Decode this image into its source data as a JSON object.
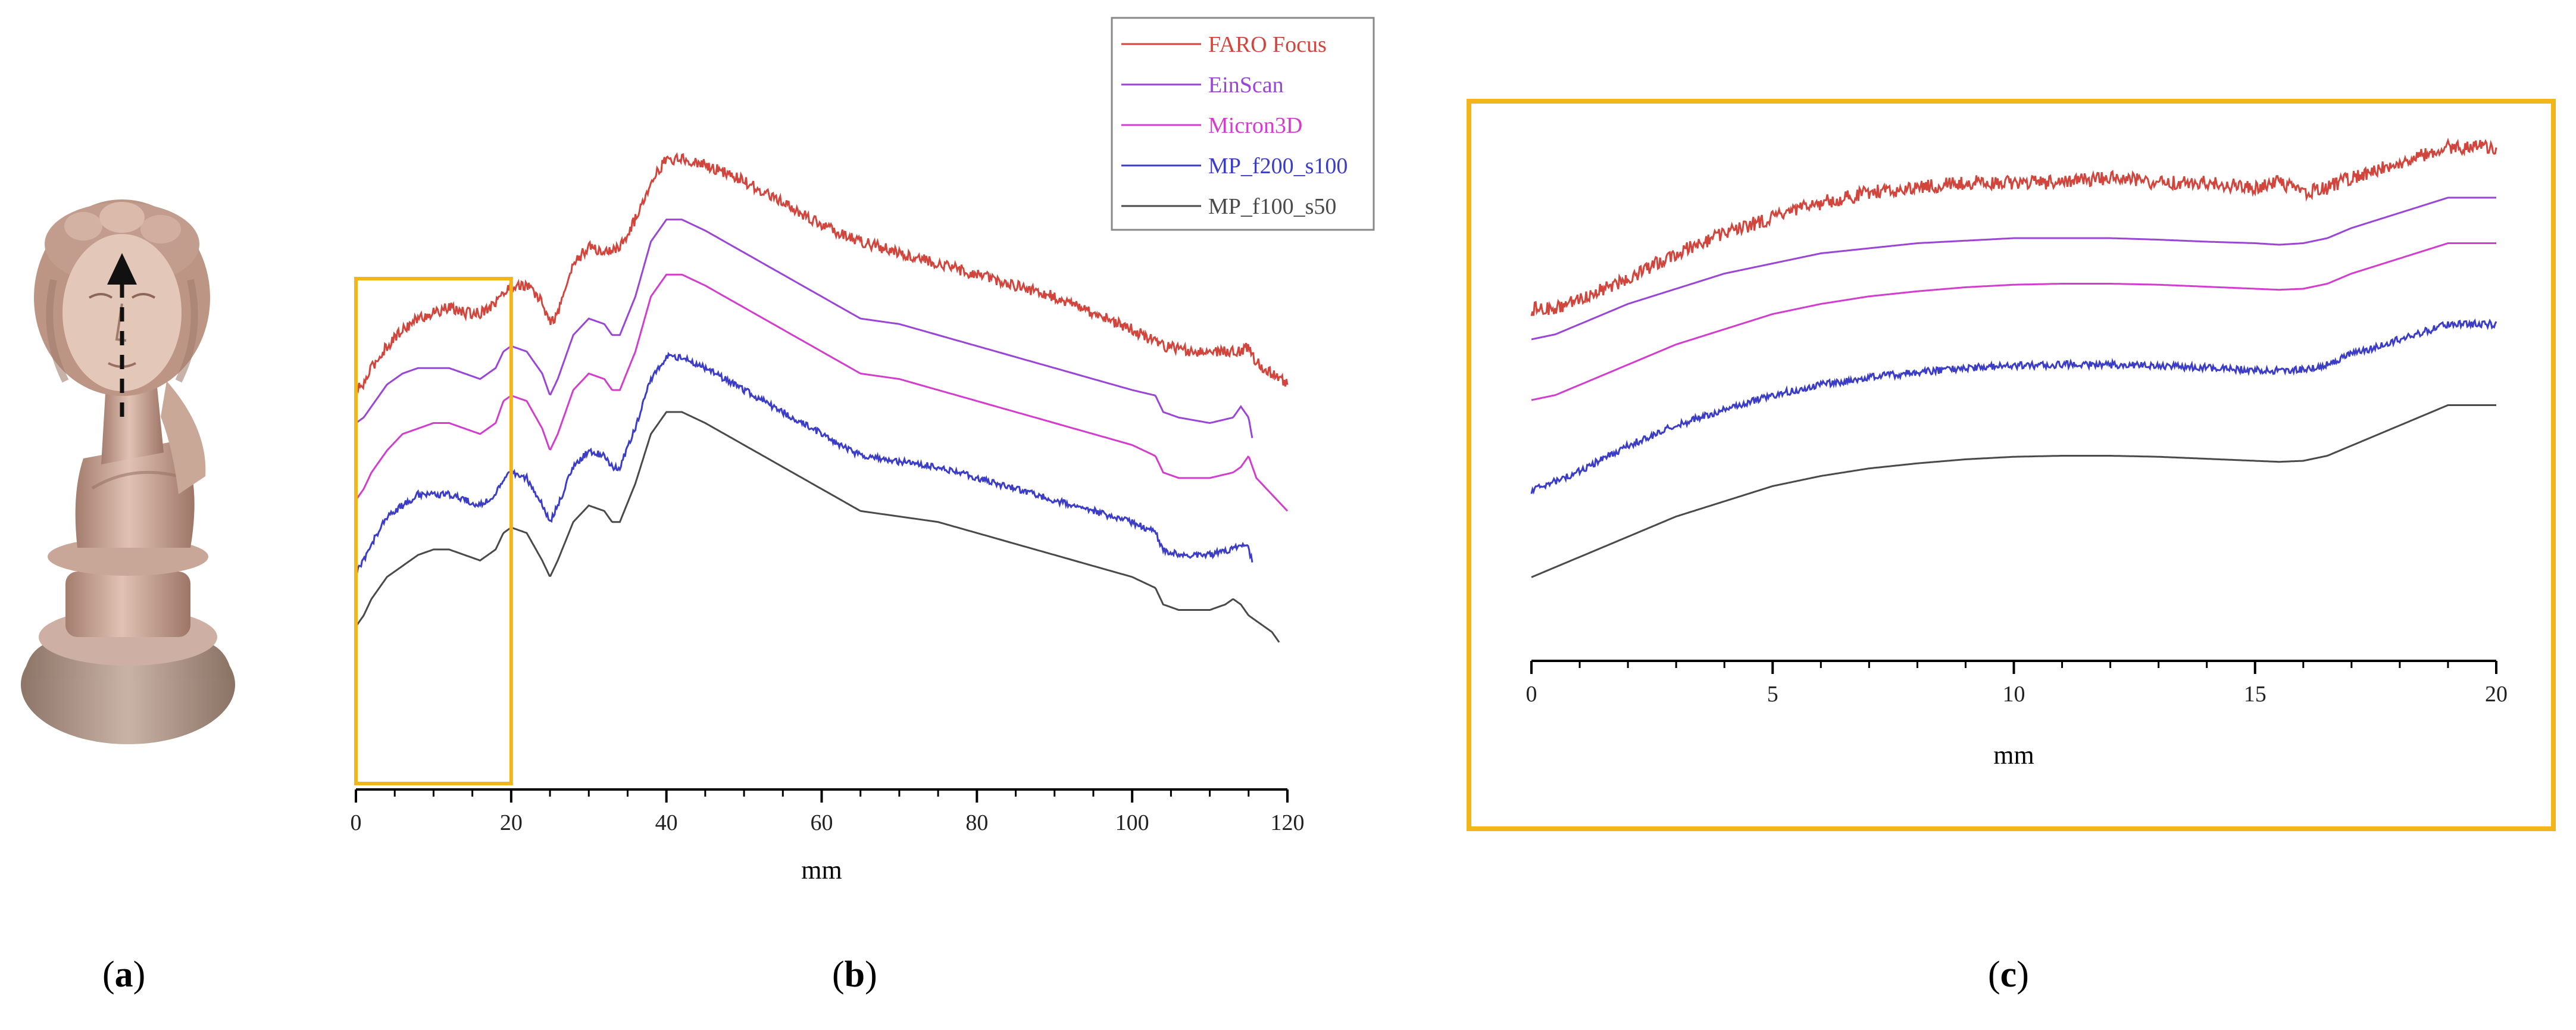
{
  "panels": {
    "a": {
      "label_open": "(",
      "label_letter": "a",
      "label_close": ")"
    },
    "b": {
      "label_open": "(",
      "label_letter": "b",
      "label_close": ")"
    },
    "c": {
      "label_open": "(",
      "label_letter": "c",
      "label_close": ")"
    }
  },
  "colors": {
    "highlight_box": "#f2b61a",
    "axis": "#000000"
  },
  "chart_data": [
    {
      "panel": "b",
      "type": "line",
      "title": "",
      "xlabel": "mm",
      "ylabel": "",
      "xlim": [
        0,
        120
      ],
      "xticks": [
        "0",
        "20",
        "40",
        "60",
        "80",
        "100",
        "120"
      ],
      "ylim": [
        0,
        115
      ],
      "yticks": [],
      "grid": false,
      "legend_position": "top-right",
      "highlight_range_x": [
        0,
        20
      ],
      "series": [
        {
          "name": "FARO Focus",
          "color": "#d1453d",
          "noise": 1.0,
          "x": [
            0,
            1,
            2,
            4,
            6,
            8,
            10,
            12,
            14,
            16,
            18,
            20,
            22,
            24,
            25,
            26,
            28,
            30,
            32,
            34,
            36,
            38,
            40,
            42,
            45,
            50,
            55,
            60,
            65,
            70,
            75,
            80,
            85,
            90,
            95,
            100,
            104,
            108,
            112,
            114,
            115,
            116,
            118,
            120
          ],
          "y": [
            72,
            73,
            76,
            80,
            83,
            85,
            86,
            87,
            86,
            86,
            88,
            91,
            91,
            88,
            84,
            86,
            95,
            98,
            97,
            98,
            103,
            110,
            114,
            114,
            113,
            110,
            106,
            102,
            99,
            97,
            95,
            93,
            91,
            89,
            86,
            83,
            80,
            79,
            79,
            79,
            80,
            77,
            75,
            73
          ]
        },
        {
          "name": "EinScan",
          "color": "#9b45d6",
          "noise": 0,
          "x": [
            0,
            1,
            2,
            4,
            6,
            8,
            10,
            12,
            14,
            16,
            18,
            19,
            20,
            22,
            24,
            25,
            26,
            28,
            30,
            32,
            33,
            34,
            36,
            38,
            40,
            42,
            45,
            50,
            55,
            60,
            65,
            70,
            75,
            80,
            85,
            90,
            95,
            100,
            103,
            104,
            106,
            110,
            113,
            114,
            115,
            115.5
          ],
          "y": [
            66,
            67,
            69,
            73,
            75,
            76,
            76,
            76,
            75,
            74,
            76,
            79,
            80,
            79,
            75,
            71,
            74,
            82,
            85,
            84,
            82,
            82,
            89,
            99,
            103,
            103,
            101,
            97,
            93,
            89,
            85,
            84,
            82,
            80,
            78,
            76,
            74,
            72,
            71,
            68,
            67,
            66,
            67,
            69,
            67,
            63
          ]
        },
        {
          "name": "Micron3D",
          "color": "#d23dce",
          "noise": 0,
          "x": [
            0,
            1,
            2,
            4,
            6,
            8,
            10,
            12,
            14,
            16,
            18,
            19,
            20,
            22,
            24,
            25,
            26,
            28,
            30,
            32,
            33,
            34,
            36,
            38,
            40,
            42,
            45,
            50,
            55,
            60,
            65,
            70,
            75,
            80,
            85,
            90,
            95,
            100,
            103,
            104,
            106,
            110,
            113,
            114,
            115,
            116,
            118,
            120
          ],
          "y": [
            52,
            54,
            57,
            61,
            64,
            65,
            66,
            66,
            65,
            64,
            66,
            70,
            71,
            70,
            65,
            61,
            64,
            72,
            75,
            74,
            72,
            72,
            79,
            89,
            93,
            93,
            91,
            87,
            83,
            79,
            75,
            74,
            72,
            70,
            68,
            66,
            64,
            62,
            60,
            57,
            56,
            56,
            57,
            58,
            60,
            56,
            53,
            50
          ]
        },
        {
          "name": "MP_f200_s100",
          "color": "#3b3cc8",
          "noise": 0.6,
          "x": [
            0,
            1,
            2,
            4,
            6,
            8,
            10,
            12,
            14,
            16,
            18,
            19,
            20,
            22,
            24,
            25,
            26,
            28,
            30,
            32,
            33,
            34,
            36,
            38,
            40,
            42,
            45,
            50,
            55,
            60,
            65,
            70,
            75,
            80,
            85,
            90,
            95,
            100,
            103,
            104,
            106,
            110,
            113,
            114,
            115,
            115.5
          ],
          "y": [
            39,
            41,
            44,
            49,
            51,
            53,
            53,
            53,
            52,
            51,
            53,
            56,
            57,
            56,
            51,
            48,
            51,
            58,
            61,
            60,
            58,
            58,
            65,
            74,
            78,
            78,
            76,
            72,
            68,
            64,
            60,
            59,
            58,
            56,
            54,
            52,
            50,
            48,
            46,
            43,
            42,
            42,
            43,
            44,
            43,
            41
          ]
        },
        {
          "name": "MP_f100_s50",
          "color": "#4a4a4a",
          "noise": 0,
          "x": [
            0,
            1,
            2,
            4,
            6,
            8,
            10,
            12,
            14,
            16,
            18,
            19,
            20,
            22,
            24,
            25,
            26,
            28,
            30,
            32,
            33,
            34,
            36,
            38,
            40,
            42,
            45,
            50,
            55,
            60,
            65,
            70,
            75,
            80,
            85,
            90,
            95,
            100,
            103,
            104,
            106,
            110,
            112,
            113,
            114,
            115,
            116,
            118,
            119
          ],
          "y": [
            29,
            31,
            34,
            38,
            40,
            42,
            43,
            43,
            42,
            41,
            43,
            46,
            47,
            46,
            41,
            38,
            41,
            48,
            51,
            50,
            48,
            48,
            55,
            64,
            68,
            68,
            66,
            62,
            58,
            54,
            50,
            49,
            48,
            46,
            44,
            42,
            40,
            38,
            36,
            33,
            32,
            32,
            33,
            34,
            33,
            31,
            30,
            28,
            26
          ]
        }
      ]
    },
    {
      "panel": "c",
      "type": "line",
      "title": "",
      "xlabel": "mm",
      "ylabel": "",
      "xlim": [
        0,
        20
      ],
      "xticks": [
        "0",
        "5",
        "10",
        "15",
        "20"
      ],
      "ylim": [
        0,
        100
      ],
      "yticks": [],
      "grid": false,
      "series": [
        {
          "name": "FARO Focus",
          "color": "#d1453d",
          "noise": 1.4,
          "x": [
            0,
            0.5,
            1,
            2,
            3,
            4,
            5,
            6,
            7,
            8,
            9,
            10,
            11,
            12,
            13,
            14,
            15,
            15.5,
            16,
            16.5,
            17,
            18,
            19,
            20
          ],
          "y": [
            66,
            66,
            68,
            72,
            77,
            81,
            84,
            87,
            89,
            90,
            91,
            91,
            91,
            92,
            91,
            91,
            90,
            91,
            89,
            90,
            92,
            95,
            98,
            98
          ]
        },
        {
          "name": "EinScan",
          "color": "#9b45d6",
          "noise": 0,
          "x": [
            0,
            0.5,
            1,
            2,
            3,
            4,
            5,
            6,
            7,
            8,
            9,
            10,
            11,
            12,
            13,
            14,
            15,
            15.5,
            16,
            16.5,
            17,
            18,
            19,
            20
          ],
          "y": [
            60,
            61,
            63,
            67,
            70,
            73,
            75,
            77,
            78,
            79,
            79.5,
            80,
            80,
            80,
            79.7,
            79.3,
            79,
            78.7,
            79,
            80,
            82,
            85,
            88,
            88
          ]
        },
        {
          "name": "Micron3D",
          "color": "#d23dce",
          "noise": 0,
          "x": [
            0,
            0.5,
            1,
            2,
            3,
            4,
            5,
            6,
            7,
            8,
            9,
            10,
            11,
            12,
            13,
            14,
            15,
            15.5,
            16,
            16.5,
            17,
            18,
            19,
            20
          ],
          "y": [
            48,
            49,
            51,
            55,
            59,
            62,
            65,
            67,
            68.5,
            69.5,
            70.3,
            70.8,
            71,
            71,
            70.8,
            70.4,
            70,
            69.8,
            70,
            71,
            73,
            76,
            79,
            79
          ]
        },
        {
          "name": "MP_f200_s100",
          "color": "#3b3cc8",
          "noise": 0.7,
          "x": [
            0,
            0.5,
            1,
            2,
            3,
            4,
            5,
            6,
            7,
            8,
            9,
            10,
            11,
            12,
            13,
            14,
            15,
            15.5,
            16,
            16.5,
            17,
            18,
            19,
            20
          ],
          "y": [
            30,
            32,
            34,
            39,
            43,
            46,
            49,
            51,
            52.5,
            53.5,
            54.3,
            54.8,
            55,
            55,
            54.8,
            54.4,
            54,
            53.8,
            54,
            55,
            57,
            60,
            63,
            63
          ]
        },
        {
          "name": "MP_f100_s50",
          "color": "#4a4a4a",
          "noise": 0,
          "x": [
            0,
            0.5,
            1,
            2,
            3,
            4,
            5,
            6,
            7,
            8,
            9,
            10,
            11,
            12,
            13,
            14,
            15,
            15.5,
            16,
            16.5,
            17,
            18,
            19,
            20
          ],
          "y": [
            13,
            15,
            17,
            21,
            25,
            28,
            31,
            33,
            34.5,
            35.5,
            36.3,
            36.8,
            37,
            37,
            36.8,
            36.4,
            36,
            35.8,
            36,
            37,
            39,
            43,
            47,
            47
          ]
        }
      ]
    }
  ]
}
